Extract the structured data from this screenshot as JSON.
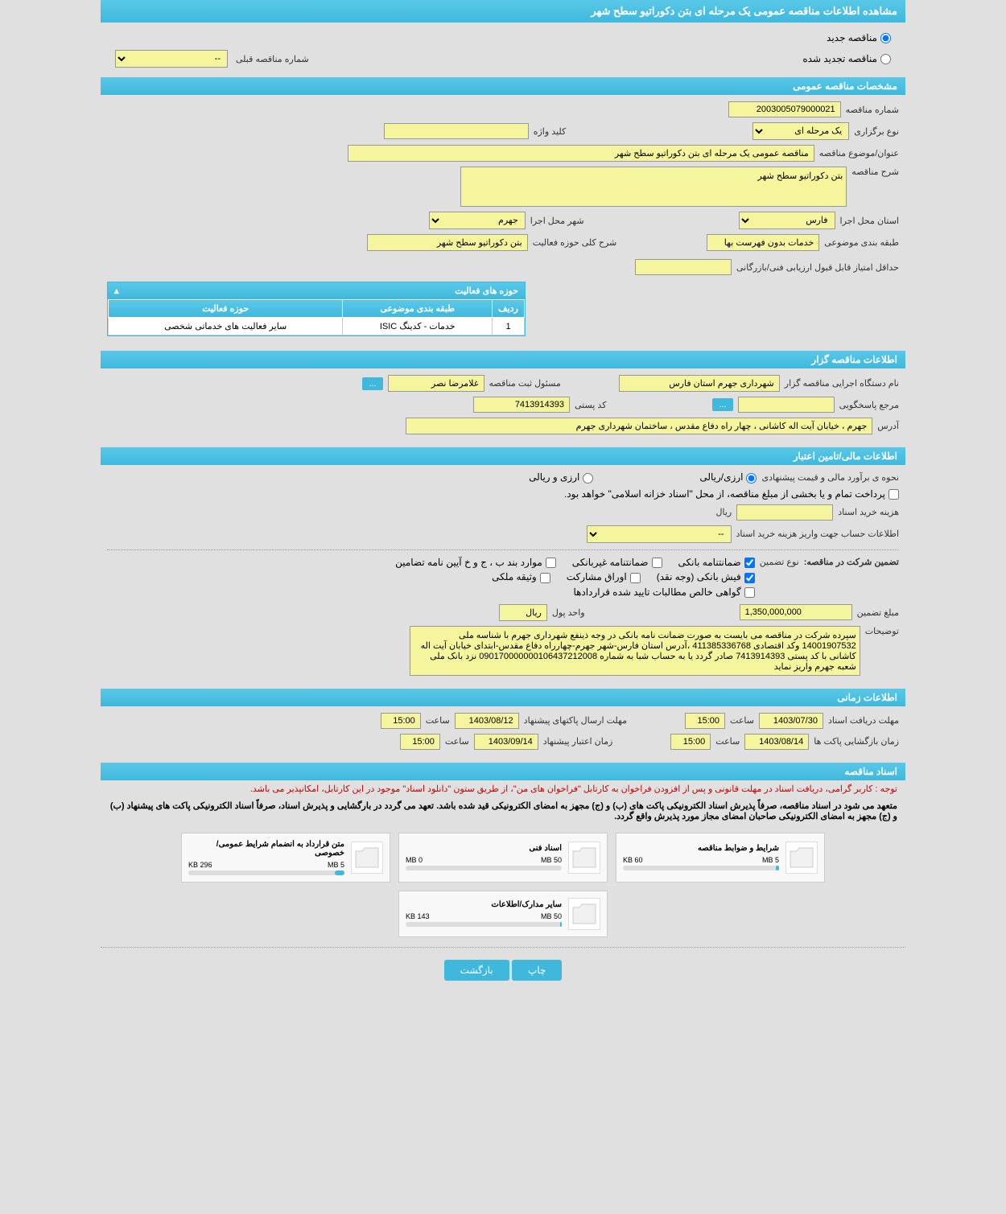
{
  "header": {
    "title": "مشاهده اطلاعات مناقصه عمومی یک مرحله ای بتن دکوراتیو سطح شهر"
  },
  "status": {
    "new_tender": "مناقصه جدید",
    "renewed_tender": "مناقصه تجدید شده",
    "prev_number_label": "شماره مناقصه قبلی",
    "prev_number_value": "--"
  },
  "general": {
    "section_title": "مشخصات مناقصه عمومی",
    "number_label": "شماره مناقصه",
    "number_value": "2003005079000021",
    "type_label": "نوع برگزاری",
    "type_value": "یک مرحله ای",
    "keyword_label": "کلید واژه",
    "keyword_value": "",
    "subject_label": "عنوان/موضوع مناقصه",
    "subject_value": "مناقصه عمومی یک مرحله ای بتن دکوراتیو سطح شهر",
    "desc_label": "شرح مناقصه",
    "desc_value": "بتن دکوراتیو سطح شهر",
    "province_label": "استان محل اجرا",
    "province_value": "فارس",
    "city_label": "شهر محل اجرا",
    "city_value": "جهرم",
    "category_label": "طبقه بندی موضوعی",
    "category_value": "خدمات بدون فهرست بها",
    "activity_desc_label": "شرح کلی حوزه فعالیت",
    "activity_desc_value": "بتن دکوراتیو سطح شهر",
    "min_score_label": "حداقل امتیاز قابل قبول ارزیابی فنی/بازرگانی",
    "min_score_value": ""
  },
  "activity_areas": {
    "panel_title": "حوزه های فعالیت",
    "col_row": "ردیف",
    "col_category": "طبقه بندی موضوعی",
    "col_area": "حوزه فعالیت",
    "rows": [
      {
        "num": "1",
        "category": "خدمات - کدینگ ISIC",
        "area": "سایر فعالیت های خدماتی شخصی"
      }
    ]
  },
  "organizer": {
    "section_title": "اطلاعات مناقصه گزار",
    "org_label": "نام دستگاه اجرایی مناقصه گزار",
    "org_value": "شهرداری جهرم استان فارس",
    "reg_manager_label": "مسئول ثبت مناقصه",
    "reg_manager_value": "غلامرضا  نصر",
    "contact_label": "مرجع پاسخگویی",
    "contact_value": "",
    "postal_label": "کد پستی",
    "postal_value": "7413914393",
    "address_label": "آدرس",
    "address_value": "جهرم ، خیابان آیت اله کاشانی ، چهار راه دفاع مقدس ، ساختمان شهرداری جهرم",
    "btn_dots": "..."
  },
  "financial": {
    "section_title": "اطلاعات مالی/تامین اعتبار",
    "estimate_label": "نحوه ی برآورد مالی و قیمت پیشنهادی",
    "opt_rial": "ارزی/ریالی",
    "opt_currency": "ارزی و ریالی",
    "payment_note": "پرداخت تمام و یا بخشی از مبلغ مناقصه، از محل \"اسناد خزانه اسلامی\" خواهد بود.",
    "doc_cost_label": "هزینه خرید اسناد",
    "doc_cost_value": "",
    "doc_cost_unit": "ریال",
    "account_label": "اطلاعات حساب جهت واریز هزینه خرید اسناد",
    "account_value": "--",
    "guarantee_header": "تضمین شرکت در مناقصه:",
    "guarantee_type_label": "نوع تضمین",
    "chk_bank_guarantee": "ضمانتنامه بانکی",
    "chk_nonbank_guarantee": "ضمانتنامه غیربانکی",
    "chk_cases": "موارد بند ب ، ج و خ آیین نامه تضامین",
    "chk_bank_receipt": "فیش بانکی (وجه نقد)",
    "chk_participation": "اوراق مشارکت",
    "chk_property": "وثیقه ملکی",
    "chk_contract_cert": "گواهی خالص مطالبات تایید شده قراردادها",
    "guarantee_amount_label": "مبلغ تضمین",
    "guarantee_amount_value": "1,350,000,000",
    "unit_label": "واحد پول",
    "unit_value": "ریال",
    "notes_label": "توضیحات",
    "notes_value": "سپرده شرکت در مناقصه می بایست به صورت ضمانت نامه بانکی در وجه ذینفع شهرداری جهرم با شناسه ملی 14001907532 وکد اقتصادی 411385336768 ،آدرس استان فارس-شهر جهرم-چهارراه دفاع مقدس-ابتدای  خیابان آیت اله کاشانی با کد پستی 7413914393 صادر گردد یا به حساب شبا به شماره 090170000000106437212008 نزد بانک ملی شعبه جهرم واریز نماید"
  },
  "timing": {
    "section_title": "اطلاعات زمانی",
    "receive_label": "مهلت دریافت اسناد",
    "receive_date": "1403/07/30",
    "time_label": "ساعت",
    "receive_time": "15:00",
    "send_label": "مهلت ارسال پاکتهای پیشنهاد",
    "send_date": "1403/08/12",
    "send_time": "15:00",
    "open_label": "زمان بازگشایی پاکت ها",
    "open_date": "1403/08/14",
    "open_time": "15:00",
    "credit_label": "زمان اعتبار پیشنهاد",
    "credit_date": "1403/09/14",
    "credit_time": "15:00"
  },
  "documents": {
    "section_title": "اسناد مناقصه",
    "notice1": "توجه : کاربر گرامی، دریافت اسناد در مهلت قانونی و پس از افزودن فراخوان به کارتابل \"فراخوان های من\"، از طریق ستون \"دانلود اسناد\" موجود در این کارتابل، امکانپذیر می باشد.",
    "notice2": "متعهد می شود در اسناد مناقصه، صرفاً پذیرش اسناد الکترونیکی پاکت های (ب) و (ج) مجهز به امضای الکترونیکی قید شده باشد. تعهد می گردد در بارگشایی و پذیرش اسناد، صرفاً اسناد الکترونیکی پاکت های پیشنهاد (ب) و (ج) مجهز به امضای الکترونیکی صاحبان امضای مجاز مورد پذیرش واقع گردد.",
    "cards": [
      {
        "title": "شرایط و ضوابط مناقصه",
        "used": "60 KB",
        "total": "5 MB",
        "fill_pct": 2
      },
      {
        "title": "اسناد فنی",
        "used": "0 MB",
        "total": "50 MB",
        "fill_pct": 0
      },
      {
        "title": "متن قرارداد به انضمام شرایط عمومی/خصوصی",
        "used": "296 KB",
        "total": "5 MB",
        "fill_pct": 6
      },
      {
        "title": "سایر مدارک/اطلاعات",
        "used": "143 KB",
        "total": "50 MB",
        "fill_pct": 1
      }
    ]
  },
  "footer": {
    "print": "چاپ",
    "back": "بازگشت"
  },
  "colors": {
    "header_bg": "#3fb8dc",
    "field_bg": "#f5f59e",
    "page_bg": "#e0e0e0"
  }
}
